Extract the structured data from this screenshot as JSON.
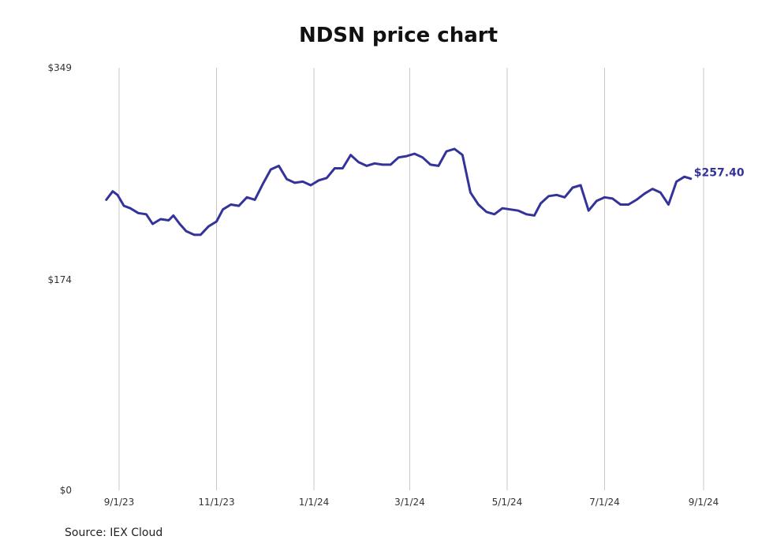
{
  "chart_data": {
    "type": "line",
    "title": "NDSN price chart",
    "source": "Source: IEX Cloud",
    "y_ticks": [
      {
        "value": 349,
        "label": "$349"
      },
      {
        "value": 174,
        "label": "$174"
      },
      {
        "value": 0,
        "label": "$0"
      }
    ],
    "ylim": [
      0,
      349
    ],
    "x_ticks": [
      {
        "date": "2023-09-01",
        "label": "9/1/23"
      },
      {
        "date": "2023-11-01",
        "label": "11/1/23"
      },
      {
        "date": "2024-01-01",
        "label": "1/1/24"
      },
      {
        "date": "2024-03-01",
        "label": "3/1/24"
      },
      {
        "date": "2024-05-01",
        "label": "5/1/24"
      },
      {
        "date": "2024-07-01",
        "label": "7/1/24"
      },
      {
        "date": "2024-09-01",
        "label": "9/1/24"
      }
    ],
    "xlim": [
      "2023-08-24",
      "2024-09-01"
    ],
    "grid": "vertical",
    "line_color": "#333399",
    "last_value_label": "$257.40",
    "series": [
      {
        "x": [
          "2023-08-24",
          "2023-08-28",
          "2023-08-31",
          "2023-09-04",
          "2023-09-08",
          "2023-09-13",
          "2023-09-18",
          "2023-09-22",
          "2023-09-27",
          "2023-10-02",
          "2023-10-05",
          "2023-10-09",
          "2023-10-13",
          "2023-10-18",
          "2023-10-22",
          "2023-10-27",
          "2023-11-01",
          "2023-11-05",
          "2023-11-10",
          "2023-11-15",
          "2023-11-20",
          "2023-11-25",
          "2023-11-30",
          "2023-12-05",
          "2023-12-10",
          "2023-12-15",
          "2023-12-20",
          "2023-12-25",
          "2023-12-30",
          "2024-01-04",
          "2024-01-09",
          "2024-01-14",
          "2024-01-19",
          "2024-01-24",
          "2024-01-29",
          "2024-02-03",
          "2024-02-08",
          "2024-02-13",
          "2024-02-18",
          "2024-02-23",
          "2024-02-28",
          "2024-03-04",
          "2024-03-09",
          "2024-03-14",
          "2024-03-19",
          "2024-03-24",
          "2024-03-29",
          "2024-04-03",
          "2024-04-08",
          "2024-04-13",
          "2024-04-18",
          "2024-04-23",
          "2024-04-28",
          "2024-05-03",
          "2024-05-08",
          "2024-05-13",
          "2024-05-18",
          "2024-05-22",
          "2024-05-27",
          "2024-06-01",
          "2024-06-06",
          "2024-06-11",
          "2024-06-16",
          "2024-06-21",
          "2024-06-26",
          "2024-07-01",
          "2024-07-06",
          "2024-07-11",
          "2024-07-16",
          "2024-07-21",
          "2024-07-26",
          "2024-07-31",
          "2024-08-05",
          "2024-08-10",
          "2024-08-15",
          "2024-08-20",
          "2024-08-24"
        ],
        "y": [
          240,
          247,
          244,
          235,
          233,
          229,
          228,
          220,
          224,
          223,
          227,
          220,
          214,
          211,
          211,
          218,
          222,
          232,
          236,
          235,
          242,
          240,
          253,
          265,
          268,
          257,
          254,
          255,
          252,
          256,
          258,
          266,
          266,
          277,
          271,
          268,
          270,
          269,
          269,
          275,
          276,
          278,
          275,
          269,
          268,
          280,
          282,
          277,
          246,
          236,
          230,
          228,
          233,
          232,
          231,
          228,
          227,
          237,
          243,
          244,
          242,
          250,
          252,
          231,
          239,
          242,
          241,
          236,
          236,
          240,
          245,
          249,
          246,
          236,
          255,
          259,
          257.4
        ]
      }
    ]
  }
}
